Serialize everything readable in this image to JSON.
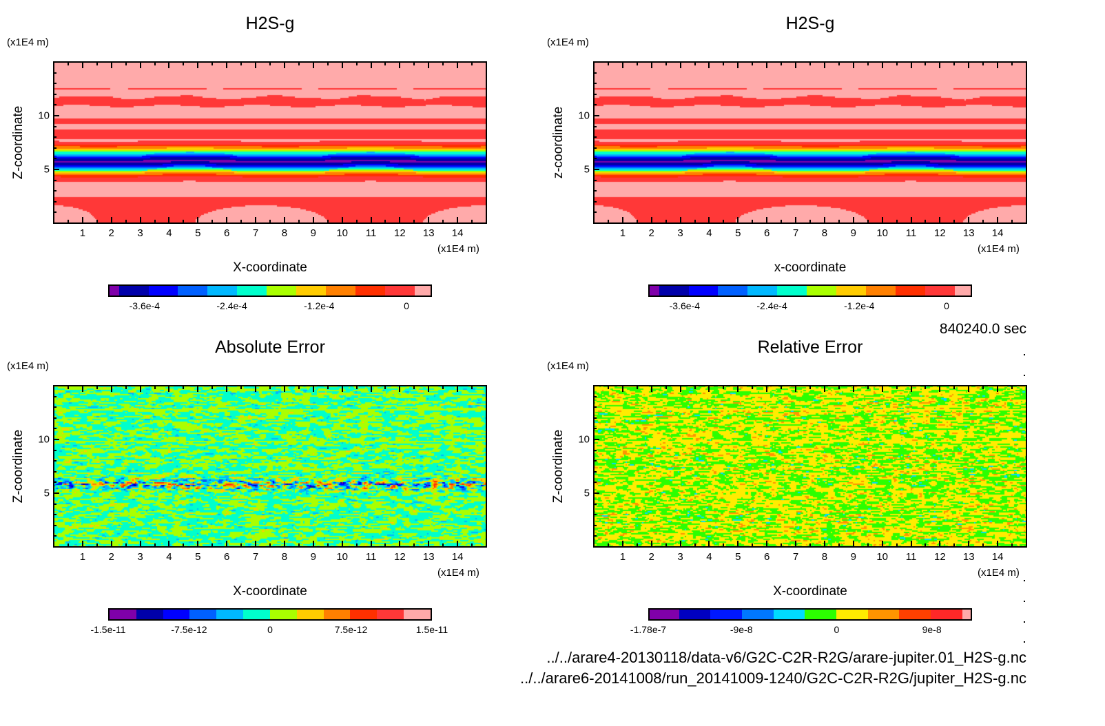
{
  "time_label": "840240.0 sec",
  "file_paths": [
    "../../arare4-20130118/data-v6/G2C-C2R-R2G/arare-jupiter.01_H2S-g.nc",
    "../../arare6-20141008/run_20141009-1240/G2C-C2R-R2G/jupiter_H2S-g.nc"
  ],
  "chart_data": [
    {
      "type": "heatmap",
      "title": "H2S-g",
      "xlabel": "X-coordinate",
      "ylabel": "Z-coordinate",
      "x_unit": "(x1E4 m)",
      "y_unit": "(x1E4 m)",
      "xlim": [
        0,
        15
      ],
      "ylim": [
        0,
        15
      ],
      "xticks": [
        1,
        2,
        3,
        4,
        5,
        6,
        7,
        8,
        9,
        10,
        11,
        12,
        13,
        14
      ],
      "yticks": [
        5,
        10
      ],
      "colorbar": {
        "min": -0.00041,
        "max": 3.5e-05,
        "levels": [
          -0.000397,
          -0.000356,
          -0.000315,
          -0.000274,
          -0.000233,
          -0.000192,
          -0.000151,
          -0.00011,
          -6.9e-05,
          -2.8e-05,
          1.3e-05
        ],
        "colors": [
          "#7f00aa",
          "#0000aa",
          "#0000ff",
          "#0060ff",
          "#00b8ff",
          "#00ffcc",
          "#aaff00",
          "#ffcc00",
          "#ff8000",
          "#ff3000",
          "#ff3838",
          "#ffaaaa"
        ],
        "ticks": [
          {
            "value": -0.00036,
            "label": "-3.6e-4"
          },
          {
            "value": -0.00024,
            "label": "-2.4e-4"
          },
          {
            "value": -0.00012,
            "label": "-1.2e-4"
          },
          {
            "value": 0,
            "label": "0"
          }
        ]
      }
    },
    {
      "type": "heatmap",
      "title": "H2S-g",
      "xlabel": "x-coordinate",
      "ylabel": "z-coordinate",
      "x_unit": "(x1E4 m)",
      "y_unit": "(x1E4 m)",
      "xlim": [
        0,
        15
      ],
      "ylim": [
        0,
        15
      ],
      "xticks": [
        1,
        2,
        3,
        4,
        5,
        6,
        7,
        8,
        9,
        10,
        11,
        12,
        13,
        14
      ],
      "yticks": [
        5,
        10
      ],
      "colorbar": {
        "min": -0.00041,
        "max": 3.5e-05,
        "levels": [
          -0.000397,
          -0.000356,
          -0.000315,
          -0.000274,
          -0.000233,
          -0.000192,
          -0.000151,
          -0.00011,
          -6.9e-05,
          -2.8e-05,
          1.3e-05
        ],
        "colors": [
          "#7f00aa",
          "#0000aa",
          "#0000ff",
          "#0060ff",
          "#00b8ff",
          "#00ffcc",
          "#aaff00",
          "#ffcc00",
          "#ff8000",
          "#ff3000",
          "#ff3838",
          "#ffaaaa"
        ],
        "ticks": [
          {
            "value": -0.00036,
            "label": "-3.6e-4"
          },
          {
            "value": -0.00024,
            "label": "-2.4e-4"
          },
          {
            "value": -0.00012,
            "label": "-1.2e-4"
          },
          {
            "value": 0,
            "label": "0"
          }
        ]
      }
    },
    {
      "type": "heatmap",
      "title": "Absolute Error",
      "xlabel": "X-coordinate",
      "ylabel": "Z-coordinate",
      "x_unit": "(x1E4 m)",
      "y_unit": "(x1E4 m)",
      "xlim": [
        0,
        15
      ],
      "ylim": [
        0,
        15
      ],
      "xticks": [
        1,
        2,
        3,
        4,
        5,
        6,
        7,
        8,
        9,
        10,
        11,
        12,
        13,
        14
      ],
      "yticks": [
        5,
        10
      ],
      "colorbar": {
        "min": -1.5e-11,
        "max": 1.5e-11,
        "levels": [
          -1.25e-11,
          -1e-11,
          -7.5e-12,
          -5e-12,
          -2.5e-12,
          0,
          2.5e-12,
          5e-12,
          7.5e-12,
          1e-11,
          1.25e-11
        ],
        "colors": [
          "#7f00aa",
          "#0000aa",
          "#0000ff",
          "#0060ff",
          "#00b8ff",
          "#00ffcc",
          "#aaff00",
          "#ffcc00",
          "#ff8000",
          "#ff3000",
          "#ff3838",
          "#ffaaaa"
        ],
        "ticks": [
          {
            "value": -1.5e-11,
            "label": "-1.5e-11"
          },
          {
            "value": -7.5e-12,
            "label": "-7.5e-12"
          },
          {
            "value": 0,
            "label": "0"
          },
          {
            "value": 7.5e-12,
            "label": "7.5e-12"
          },
          {
            "value": 1.5e-11,
            "label": "1.5e-11"
          }
        ]
      }
    },
    {
      "type": "heatmap",
      "title": "Relative Error",
      "xlabel": "X-coordinate",
      "ylabel": "Z-coordinate",
      "x_unit": "(x1E4 m)",
      "y_unit": "(x1E4 m)",
      "xlim": [
        0,
        15
      ],
      "ylim": [
        0,
        15
      ],
      "xticks": [
        1,
        2,
        3,
        4,
        5,
        6,
        7,
        8,
        9,
        10,
        11,
        12,
        13,
        14
      ],
      "yticks": [
        5,
        10
      ],
      "colorbar": {
        "min": -1.78e-07,
        "max": 1.28e-07,
        "levels": [
          -1.5e-07,
          -1.2e-07,
          -9e-08,
          -6e-08,
          -3e-08,
          0,
          3e-08,
          6e-08,
          9e-08,
          1.2e-07
        ],
        "colors": [
          "#8000aa",
          "#0000c0",
          "#0018ff",
          "#0078ff",
          "#00dcff",
          "#2cff00",
          "#ffec00",
          "#ff9400",
          "#ff4000",
          "#ff2828",
          "#ffaaaa"
        ],
        "ticks": [
          {
            "value": -1.78e-07,
            "label": "-1.78e-7"
          },
          {
            "value": -9e-08,
            "label": "-9e-8"
          },
          {
            "value": 0,
            "label": "0"
          },
          {
            "value": 9e-08,
            "label": "9e-8"
          }
        ]
      }
    }
  ]
}
